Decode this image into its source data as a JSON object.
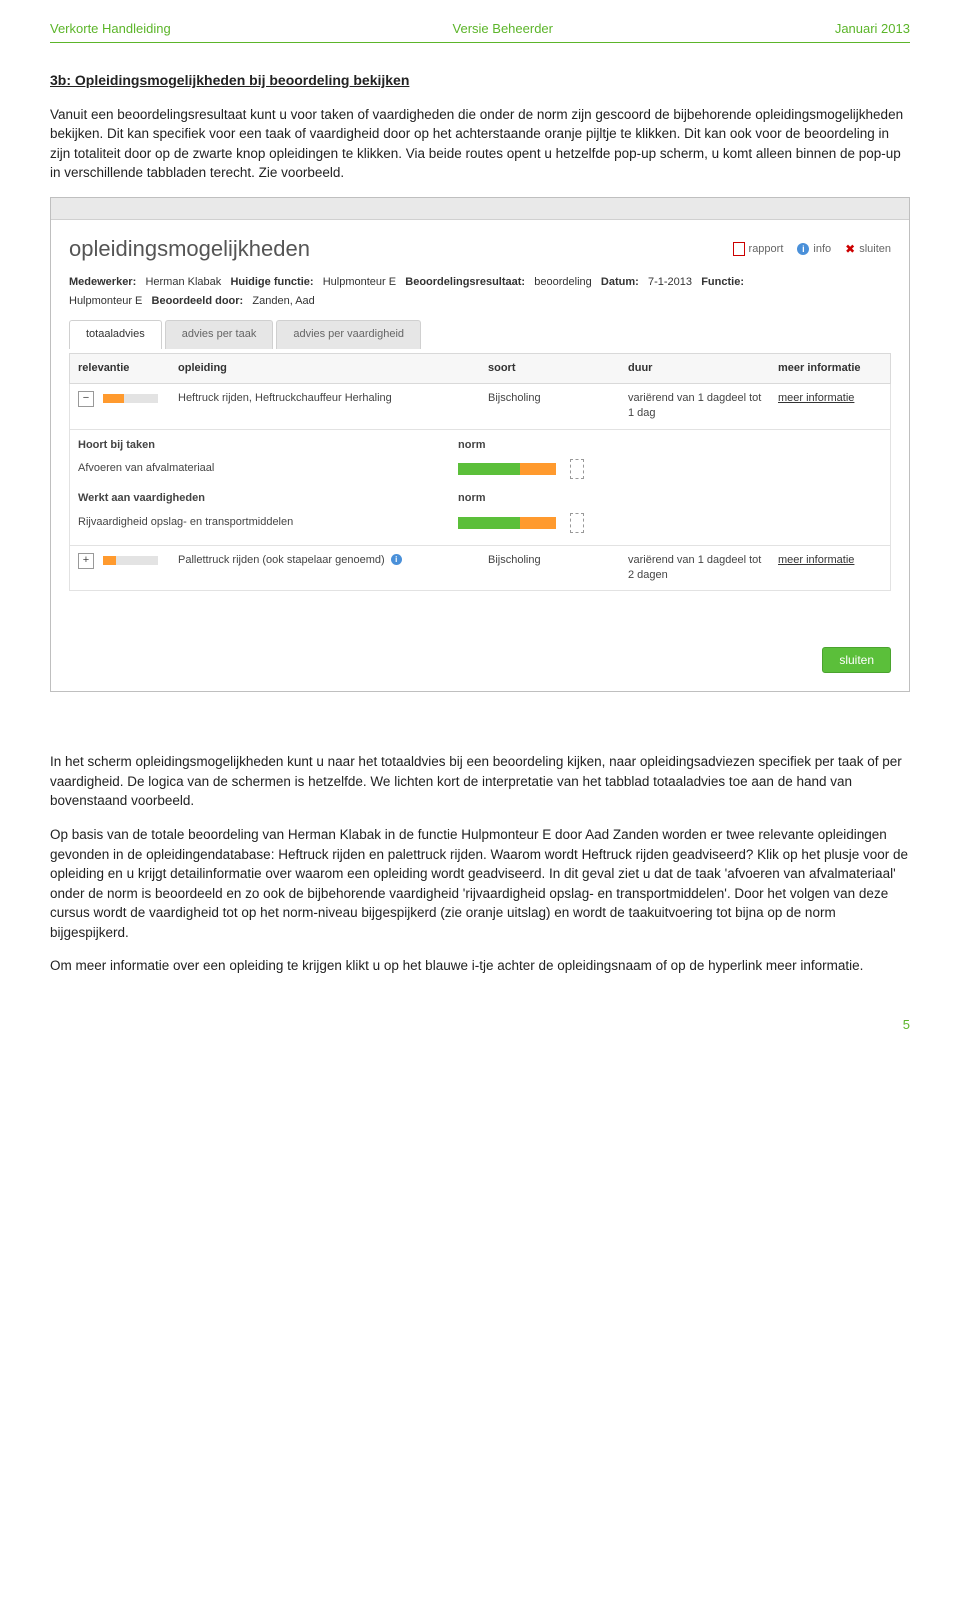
{
  "doc_header": {
    "left": "Verkorte Handleiding",
    "center": "Versie Beheerder",
    "right": "Januari 2013"
  },
  "section_title": "3b: Opleidingsmogelijkheden bij beoordeling bekijken",
  "intro_para": "Vanuit een beoordelingsresultaat kunt u voor taken of vaardigheden die onder de norm zijn gescoord de bijbehorende opleidingsmogelijkheden bekijken. Dit kan specifiek voor een taak of vaardigheid door op het achterstaande oranje pijltje te klikken. Dit kan ook voor de beoordeling in zijn totaliteit door op de zwarte knop opleidingen te klikken. Via beide routes opent u hetzelfde pop-up scherm, u komt alleen binnen de pop-up in verschillende tabbladen terecht. Zie voorbeeld.",
  "screenshot": {
    "title": "opleidingsmogelijkheden",
    "actions": {
      "rapport": "rapport",
      "info": "info",
      "sluiten": "sluiten"
    },
    "meta": {
      "medewerker_label": "Medewerker:",
      "medewerker": "Herman Klabak",
      "huidige_functie_label": "Huidige functie:",
      "huidige_functie": "Hulpmonteur E",
      "beoordelingsresultaat_label": "Beoordelingsresultaat:",
      "beoordelingsresultaat": "beoordeling",
      "datum_label": "Datum:",
      "datum": "7-1-2013",
      "functie_label": "Functie:",
      "functie": "Hulpmonteur E",
      "beoordeeld_door_label": "Beoordeeld door:",
      "beoordeeld_door": "Zanden, Aad"
    },
    "tabs": [
      "totaaladvies",
      "advies per taak",
      "advies per vaardigheid"
    ],
    "columns": {
      "relevantie": "relevantie",
      "opleiding": "opleiding",
      "soort": "soort",
      "duur": "duur",
      "meer": "meer informatie"
    },
    "rows": [
      {
        "expanded": true,
        "exp_symbol": "−",
        "rel_fill_color": "#ff9a2e",
        "rel_fill_pct": 38,
        "opleiding": "Heftruck rijden, Heftruckchauffeur Herhaling",
        "soort": "Bijscholing",
        "duur": "variërend van 1 dagdeel tot 1 dag",
        "meer": "meer informatie",
        "sub": {
          "taken_header": "Hoort bij taken",
          "norm_label": "norm",
          "taken": [
            {
              "label": "Afvoeren van afvalmateriaal"
            }
          ],
          "vaard_header": "Werkt aan vaardigheden",
          "vaardigheden": [
            {
              "label": "Rijvaardigheid opslag- en transportmiddelen"
            }
          ]
        }
      },
      {
        "expanded": false,
        "exp_symbol": "+",
        "rel_fill_color": "#ff9a2e",
        "rel_fill_pct": 24,
        "opleiding": "Pallettruck rijden (ook stapelaar genoemd)",
        "soort": "Bijscholing",
        "duur": "variërend van 1 dagdeel tot 2 dagen",
        "meer": "meer informatie"
      }
    ],
    "sluiten_btn": "sluiten",
    "normbar_colors": {
      "green": "#5bbf3a",
      "orange": "#ff9a2e"
    }
  },
  "para2": "In het scherm opleidingsmogelijkheden kunt u naar het totaaldvies bij een beoordeling kijken, naar opleidingsadviezen specifiek per taak of per vaardigheid. De logica van de schermen is hetzelfde. We lichten kort de interpretatie van het tabblad totaaladvies toe aan de hand van bovenstaand voorbeeld.",
  "para3": "Op basis van de totale beoordeling van Herman Klabak in de functie Hulpmonteur E door Aad Zanden worden er twee relevante opleidingen gevonden in de opleidingendatabase: Heftruck rijden en palettruck rijden. Waarom wordt Heftruck rijden geadviseerd? Klik op het plusje voor de opleiding en u krijgt detailinformatie over waarom een opleiding wordt geadviseerd. In dit geval ziet u dat de taak 'afvoeren van afvalmateriaal' onder de norm is beoordeeld en zo ook de bijbehorende vaardigheid 'rijvaardigheid opslag- en transportmiddelen'. Door het volgen van deze cursus wordt de vaardigheid tot op het norm-niveau bijgespijkerd (zie oranje uitslag) en wordt de taakuitvoering tot bijna op de norm bijgespijkerd.",
  "para4": "Om meer informatie over een opleiding te krijgen klikt u op het blauwe i-tje achter de opleidingsnaam of op de hyperlink meer informatie.",
  "page_num": "5"
}
